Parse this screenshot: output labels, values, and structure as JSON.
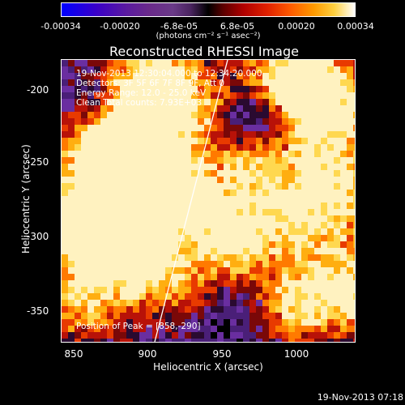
{
  "colorbar": {
    "ticks": [
      "-0.00034",
      "-0.00020",
      "-6.8e-05",
      "6.8e-05",
      "0.00020",
      "0.00034"
    ],
    "units": "(photons cm⁻² s⁻¹ asec⁻²)"
  },
  "title": "Reconstructed RHESSI Image",
  "annotations": {
    "line1": "19-Nov-2013 12:30:04.000 to 12:34:20.000",
    "line2": "Detectors: 3F 5F 6F 7F 8F 9F, Att 0",
    "line3": "Energy Range: 12.0 - 25.0 keV",
    "line4": "Clean     Total counts: 7.93E+03",
    "peak": "Position of Peak = [858,-290]"
  },
  "axes": {
    "xlabel": "Heliocentric X (arcsec)",
    "ylabel": "Heliocentric Y (arcsec)",
    "xticks": [
      "850",
      "900",
      "950",
      "1000"
    ],
    "yticks": [
      "-200",
      "-250",
      "-300",
      "-350"
    ]
  },
  "footer": "19-Nov-2013 07:18"
}
